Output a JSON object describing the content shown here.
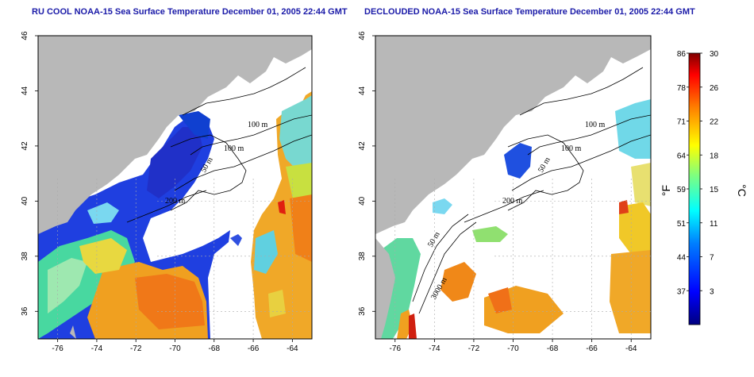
{
  "panels": [
    {
      "id": "cool",
      "title": "RU COOL NOAA-15 Sea Surface Temperature December 01, 2005 22:44 GMT",
      "contour_labels": [
        "100 m",
        "100 m",
        "50 m",
        "200 m"
      ]
    },
    {
      "id": "declouded",
      "title": "DECLOUDED NOAA-15 Sea Surface Temperature December 01, 2005 22:44 GMT",
      "contour_labels": [
        "100 m",
        "100 m",
        "50 m",
        "200 m",
        "50 m",
        "3000 m"
      ]
    }
  ],
  "axes": {
    "lon_ticks": [
      "-76",
      "-74",
      "-72",
      "-70",
      "-68",
      "-66",
      "-64"
    ],
    "lat_ticks": [
      "46",
      "44",
      "42",
      "40",
      "38",
      "36"
    ],
    "lon_range": [
      -77,
      -63
    ],
    "lat_range": [
      35,
      46
    ]
  },
  "colorbar": {
    "fahrenheit_label": "°F",
    "celsius_label": "°C",
    "fahrenheit_ticks": [
      "86",
      "78",
      "71",
      "64",
      "59",
      "51",
      "44",
      "37"
    ],
    "celsius_ticks": [
      "30",
      "26",
      "22",
      "18",
      "15",
      "11",
      "7",
      "3"
    ],
    "range_c": [
      0,
      30
    ],
    "colors": [
      "#00007f",
      "#0000ff",
      "#007fff",
      "#00ffff",
      "#7fff7f",
      "#ffff00",
      "#ff7f00",
      "#ff0000",
      "#7f0000"
    ]
  },
  "colors": {
    "land": "#b8b8b8",
    "ocean_nodata": "#ffffff",
    "contour": "#000000",
    "grid": "#aaaaaa",
    "title": "#1a1aa8"
  }
}
